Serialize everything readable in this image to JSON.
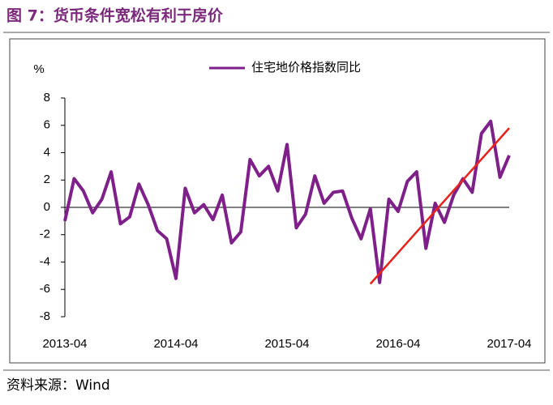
{
  "title": "图 7：货币条件宽松有利于房价",
  "source": "资料来源：Wind",
  "chart_data": {
    "type": "line",
    "y_label": "%",
    "categories": [
      "2013-04",
      null,
      null,
      null,
      null,
      null,
      null,
      null,
      null,
      null,
      null,
      null,
      "2014-04",
      null,
      null,
      null,
      null,
      null,
      null,
      null,
      null,
      null,
      null,
      null,
      "2015-04",
      null,
      null,
      null,
      null,
      null,
      null,
      null,
      null,
      null,
      null,
      null,
      "2016-04",
      null,
      null,
      null,
      null,
      null,
      null,
      null,
      null,
      null,
      null,
      null,
      "2017-04"
    ],
    "series": [
      {
        "name": "住宅地价格指数同比",
        "color": "#7e1f8a",
        "values": [
          -1.0,
          2.1,
          1.2,
          -0.4,
          0.6,
          2.6,
          -1.2,
          -0.7,
          1.7,
          0.2,
          -1.7,
          -2.3,
          -5.2,
          1.4,
          -0.4,
          0.2,
          -0.9,
          0.9,
          -2.6,
          -1.8,
          3.5,
          2.3,
          3.0,
          1.2,
          4.6,
          -1.5,
          -0.5,
          2.3,
          0.3,
          1.1,
          1.2,
          -0.8,
          -2.3,
          -0.1,
          -5.5,
          0.6,
          -0.3,
          1.9,
          2.6,
          -3.0,
          0.3,
          -1.1,
          0.9,
          2.1,
          1.1,
          5.4,
          6.3,
          2.2,
          3.8
        ]
      }
    ],
    "trend": {
      "color": "#e8221c",
      "values": [
        null,
        null,
        null,
        null,
        null,
        null,
        null,
        null,
        null,
        null,
        null,
        null,
        null,
        null,
        null,
        null,
        null,
        null,
        null,
        null,
        null,
        null,
        null,
        null,
        null,
        null,
        null,
        null,
        null,
        null,
        null,
        null,
        null,
        -5.6,
        null,
        null,
        null,
        null,
        null,
        null,
        null,
        null,
        null,
        null,
        null,
        null,
        null,
        null,
        5.8
      ]
    },
    "ylim": [
      -8,
      8
    ],
    "yticks": [
      -8,
      -6,
      -4,
      -2,
      0,
      2,
      4,
      6,
      8
    ],
    "legend": "top"
  }
}
